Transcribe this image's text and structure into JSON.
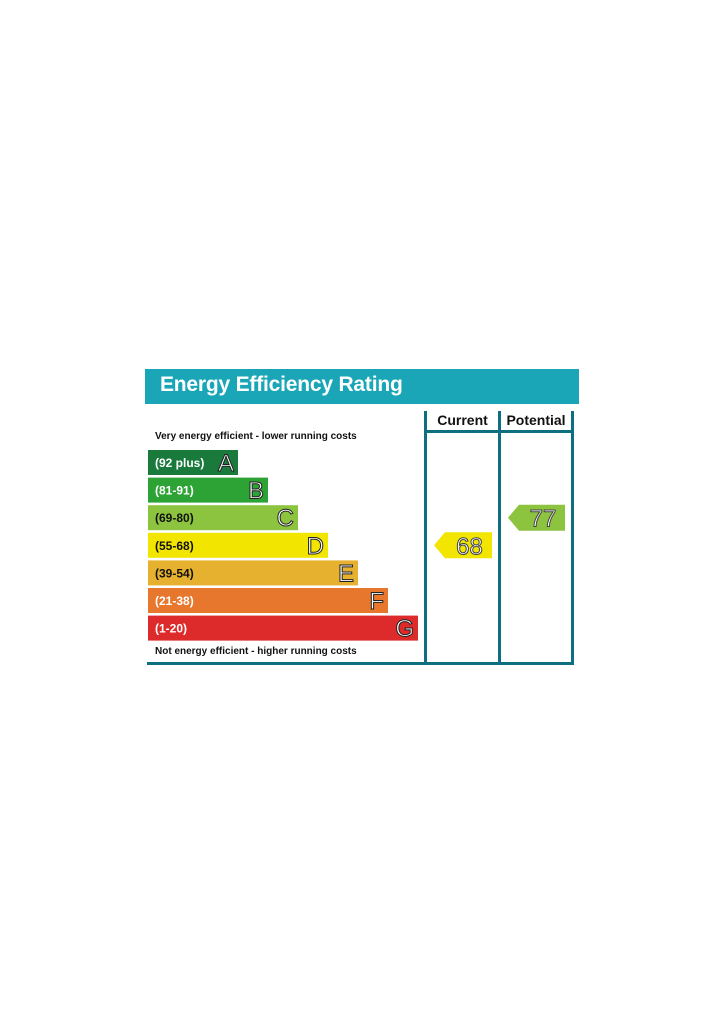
{
  "title": "Energy Efficiency Rating",
  "columns": {
    "current": "Current",
    "potential": "Potential"
  },
  "top_caption": "Very energy efficient - lower running costs",
  "bottom_caption": "Not energy efficient - higher running costs",
  "chart_data": {
    "type": "bar",
    "bands": [
      {
        "letter": "A",
        "range": "(92 plus)",
        "color": "#1a7a3c"
      },
      {
        "letter": "B",
        "range": "(81-91)",
        "color": "#2da335"
      },
      {
        "letter": "C",
        "range": "(69-80)",
        "color": "#8cc43f"
      },
      {
        "letter": "D",
        "range": "(55-68)",
        "color": "#f2e600"
      },
      {
        "letter": "E",
        "range": "(39-54)",
        "color": "#e6b12f"
      },
      {
        "letter": "F",
        "range": "(21-38)",
        "color": "#e8772e"
      },
      {
        "letter": "G",
        "range": "(1-20)",
        "color": "#dd2a2a"
      }
    ],
    "current": {
      "value": 68,
      "band": "D",
      "color": "#f2e600"
    },
    "potential": {
      "value": 77,
      "band": "C",
      "color": "#8cc43f"
    }
  }
}
